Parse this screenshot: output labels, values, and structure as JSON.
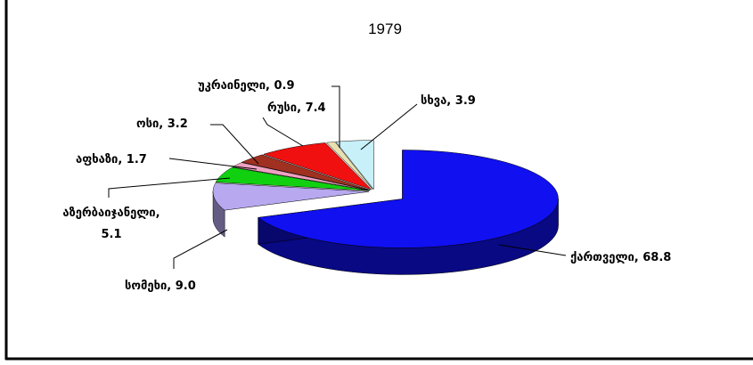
{
  "chart_data": {
    "type": "pie3d",
    "title": "1979",
    "values": [
      68.8,
      9.0,
      5.1,
      1.7,
      3.2,
      7.4,
      0.9,
      3.9
    ],
    "value_labels": [
      "ქართველი, 68.8",
      "სომეხი, 9.0",
      "აზერბაიჯანელი,\n5.1",
      "აფხაზი, 1.7",
      "ოსი, 3.2",
      "რუსი, 7.4",
      "უკრაინელი, 0.9",
      "სხვა, 3.9"
    ],
    "colors": [
      "#1010f0",
      "#b8a8f0",
      "#10d010",
      "#f0a0c0",
      "#a03020",
      "#f01010",
      "#e8e0b0",
      "#c8f0f8"
    ]
  }
}
